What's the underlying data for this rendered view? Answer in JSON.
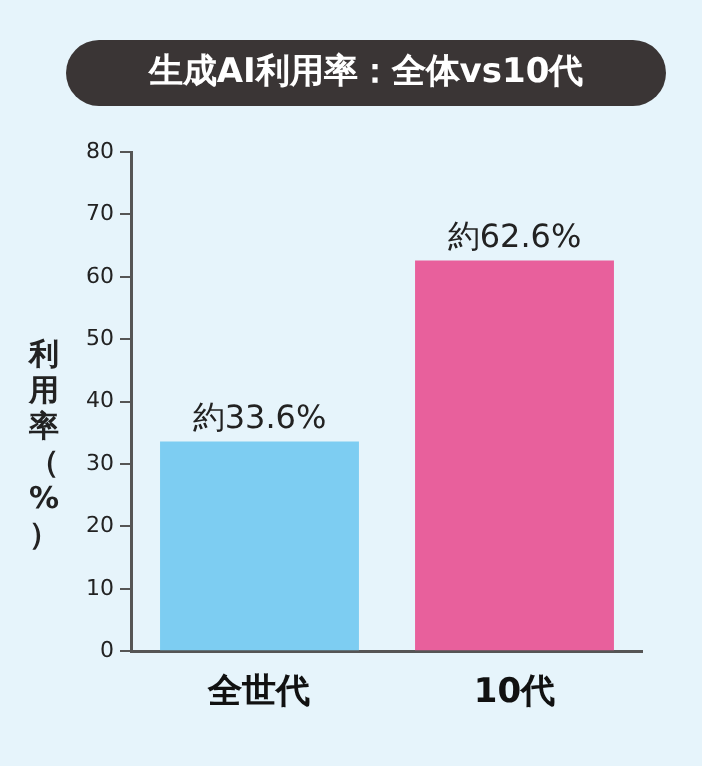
{
  "chart_data": {
    "type": "bar",
    "title": "生成AI利用率：全体vs10代",
    "ylabel": "利用率（%）",
    "categories": [
      "全世代",
      "10代"
    ],
    "values": [
      33.6,
      62.6
    ],
    "colors": [
      "#7dcdf2",
      "#e8609c"
    ],
    "value_labels": [
      "約33.6%",
      "約62.6%"
    ],
    "ylim": [
      0,
      80
    ],
    "yticks": [
      0,
      10,
      20,
      30,
      40,
      50,
      60,
      70,
      80
    ]
  }
}
